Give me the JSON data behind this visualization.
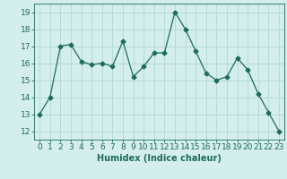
{
  "x": [
    0,
    1,
    2,
    3,
    4,
    5,
    6,
    7,
    8,
    9,
    10,
    11,
    12,
    13,
    14,
    15,
    16,
    17,
    18,
    19,
    20,
    21,
    22,
    23
  ],
  "y": [
    13,
    14,
    17,
    17.1,
    16.1,
    15.9,
    16,
    15.8,
    17.3,
    15.2,
    15.8,
    16.6,
    16.6,
    19,
    18,
    16.7,
    15.4,
    15,
    15.2,
    16.3,
    15.6,
    14.2,
    13.1,
    12
  ],
  "line_color": "#1e6b5e",
  "marker": "D",
  "marker_size": 2.5,
  "bg_color": "#d4eeeb",
  "grid_color": "#b0d8d2",
  "xlabel": "Humidex (Indice chaleur)",
  "xlim": [
    -0.5,
    23.5
  ],
  "ylim": [
    11.5,
    19.5
  ],
  "yticks": [
    12,
    13,
    14,
    15,
    16,
    17,
    18,
    19
  ],
  "xticks": [
    0,
    1,
    2,
    3,
    4,
    5,
    6,
    7,
    8,
    9,
    10,
    11,
    12,
    13,
    14,
    15,
    16,
    17,
    18,
    19,
    20,
    21,
    22,
    23
  ],
  "label_fontsize": 7,
  "tick_fontsize": 6.5
}
